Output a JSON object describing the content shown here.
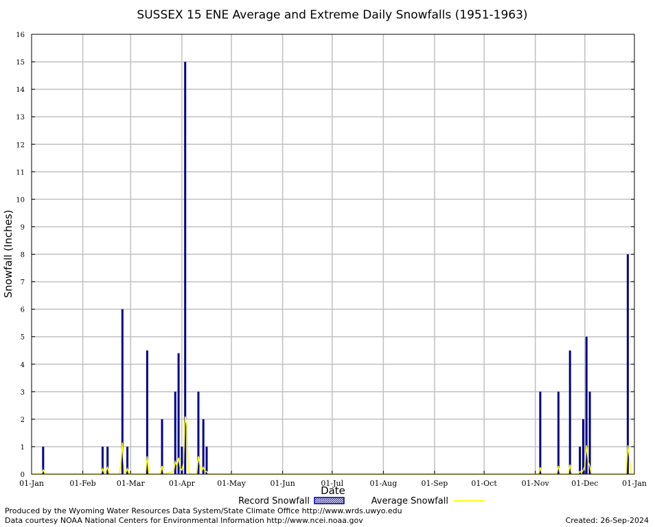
{
  "chart_data": {
    "type": "bar",
    "title": "SUSSEX 15 ENE Average and Extreme Daily Snowfalls (1951-1963)",
    "xlabel": "Date",
    "ylabel": "Snowfall (Inches)",
    "ylim": [
      0,
      16
    ],
    "yticks": [
      0,
      1,
      2,
      3,
      4,
      5,
      6,
      7,
      8,
      9,
      10,
      11,
      12,
      13,
      14,
      15,
      16
    ],
    "xlim_day": [
      1,
      366
    ],
    "xticks": [
      {
        "label": "01-Jan",
        "day": 1
      },
      {
        "label": "01-Feb",
        "day": 32
      },
      {
        "label": "01-Mar",
        "day": 61
      },
      {
        "label": "01-Apr",
        "day": 92
      },
      {
        "label": "01-May",
        "day": 122
      },
      {
        "label": "01-Jun",
        "day": 153
      },
      {
        "label": "01-Jul",
        "day": 183
      },
      {
        "label": "01-Aug",
        "day": 214
      },
      {
        "label": "01-Sep",
        "day": 245
      },
      {
        "label": "01-Oct",
        "day": 275
      },
      {
        "label": "01-Nov",
        "day": 306
      },
      {
        "label": "01-Dec",
        "day": 336
      },
      {
        "label": "01-Jan",
        "day": 366
      }
    ],
    "grid": true,
    "legend_position": "bottom",
    "series": [
      {
        "name": "Record Snowfall",
        "color": "#00008b",
        "points": [
          {
            "day": 8,
            "value": 1.0
          },
          {
            "day": 44,
            "value": 1.0
          },
          {
            "day": 47,
            "value": 1.0
          },
          {
            "day": 56,
            "value": 6.0
          },
          {
            "day": 59,
            "value": 1.0
          },
          {
            "day": 71,
            "value": 4.5
          },
          {
            "day": 80,
            "value": 2.0
          },
          {
            "day": 88,
            "value": 3.0
          },
          {
            "day": 90,
            "value": 4.4
          },
          {
            "day": 92,
            "value": 1.0
          },
          {
            "day": 94,
            "value": 15.0
          },
          {
            "day": 102,
            "value": 3.0
          },
          {
            "day": 105,
            "value": 2.0
          },
          {
            "day": 107,
            "value": 1.0
          },
          {
            "day": 309,
            "value": 3.0
          },
          {
            "day": 320,
            "value": 3.0
          },
          {
            "day": 327,
            "value": 4.5
          },
          {
            "day": 333,
            "value": 1.0
          },
          {
            "day": 335,
            "value": 2.0
          },
          {
            "day": 337,
            "value": 5.0
          },
          {
            "day": 339,
            "value": 3.0
          },
          {
            "day": 362,
            "value": 8.0
          }
        ]
      },
      {
        "name": "Average Snowfall",
        "color": "#ffff00",
        "points": [
          {
            "day": 7,
            "value": 0
          },
          {
            "day": 8,
            "value": 0.15
          },
          {
            "day": 9,
            "value": 0.05
          },
          {
            "day": 10,
            "value": 0
          },
          {
            "day": 43,
            "value": 0
          },
          {
            "day": 44,
            "value": 0.2
          },
          {
            "day": 45,
            "value": 0.05
          },
          {
            "day": 46,
            "value": 0.1
          },
          {
            "day": 47,
            "value": 0.25
          },
          {
            "day": 48,
            "value": 0
          },
          {
            "day": 54,
            "value": 0
          },
          {
            "day": 55,
            "value": 0.3
          },
          {
            "day": 56,
            "value": 1.15
          },
          {
            "day": 57,
            "value": 0.1
          },
          {
            "day": 58,
            "value": 0.05
          },
          {
            "day": 59,
            "value": 0.2
          },
          {
            "day": 60,
            "value": 0
          },
          {
            "day": 70,
            "value": 0
          },
          {
            "day": 71,
            "value": 0.65
          },
          {
            "day": 72,
            "value": 0
          },
          {
            "day": 79,
            "value": 0
          },
          {
            "day": 80,
            "value": 0.3
          },
          {
            "day": 81,
            "value": 0
          },
          {
            "day": 87,
            "value": 0.1
          },
          {
            "day": 88,
            "value": 0.45
          },
          {
            "day": 89,
            "value": 0.3
          },
          {
            "day": 90,
            "value": 0.6
          },
          {
            "day": 91,
            "value": 0.2
          },
          {
            "day": 92,
            "value": 0.15
          },
          {
            "day": 93,
            "value": 0.4
          },
          {
            "day": 94,
            "value": 2.1
          },
          {
            "day": 95,
            "value": 1.75
          },
          {
            "day": 96,
            "value": 0.1
          },
          {
            "day": 97,
            "value": 0
          },
          {
            "day": 101,
            "value": 0
          },
          {
            "day": 102,
            "value": 0.65
          },
          {
            "day": 103,
            "value": 0.3
          },
          {
            "day": 104,
            "value": 0.1
          },
          {
            "day": 105,
            "value": 0.25
          },
          {
            "day": 106,
            "value": 0.1
          },
          {
            "day": 107,
            "value": 0.1
          },
          {
            "day": 108,
            "value": 0
          },
          {
            "day": 308,
            "value": 0
          },
          {
            "day": 309,
            "value": 0.25
          },
          {
            "day": 310,
            "value": 0
          },
          {
            "day": 319,
            "value": 0
          },
          {
            "day": 320,
            "value": 0.3
          },
          {
            "day": 321,
            "value": 0
          },
          {
            "day": 326,
            "value": 0
          },
          {
            "day": 327,
            "value": 0.35
          },
          {
            "day": 328,
            "value": 0
          },
          {
            "day": 332,
            "value": 0
          },
          {
            "day": 333,
            "value": 0.1
          },
          {
            "day": 334,
            "value": 0.05
          },
          {
            "day": 335,
            "value": 0.15
          },
          {
            "day": 336,
            "value": 0.3
          },
          {
            "day": 337,
            "value": 1.05
          },
          {
            "day": 338,
            "value": 0.45
          },
          {
            "day": 339,
            "value": 0.3
          },
          {
            "day": 340,
            "value": 0
          },
          {
            "day": 361,
            "value": 0
          },
          {
            "day": 362,
            "value": 1.05
          },
          {
            "day": 363,
            "value": 0.6
          },
          {
            "day": 364,
            "value": 0
          }
        ]
      }
    ]
  },
  "footer": {
    "produced_by": "Produced by the Wyoming Water Resources Data System/State Climate Office http://www.wrds.uwyo.edu",
    "data_courtesy": "Data courtesy NOAA National Centers for Environmental Information http://www.ncei.noaa.gov",
    "created": "Created:  26-Sep-2024"
  }
}
